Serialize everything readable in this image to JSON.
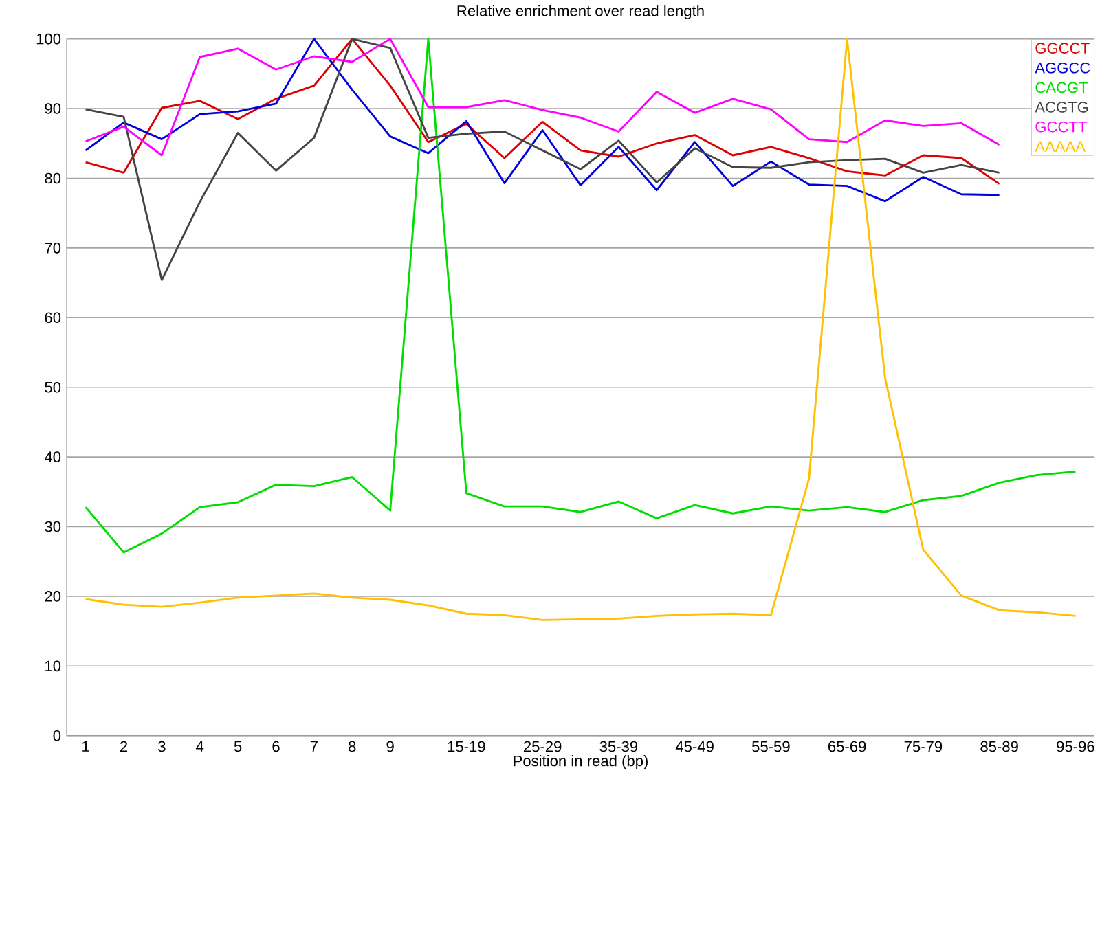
{
  "chart_data": {
    "type": "line",
    "title": "Relative enrichment over read length",
    "xlabel": "Position in read (bp)",
    "categories": [
      "1",
      "2",
      "3",
      "4",
      "5",
      "6",
      "7",
      "8",
      "9",
      null,
      "15-19",
      null,
      "25-29",
      null,
      "35-39",
      null,
      "45-49",
      null,
      "55-59",
      null,
      "65-69",
      null,
      "75-79",
      null,
      "85-89",
      null,
      "95-96"
    ],
    "ylim": [
      0,
      100
    ],
    "yticks": [
      0,
      10,
      20,
      30,
      40,
      50,
      60,
      70,
      80,
      90,
      100
    ],
    "grid": "y",
    "legend": "top right",
    "series": [
      {
        "name": "GGCCT",
        "color": "#dd0000",
        "values": [
          82.3,
          80.8,
          90.1,
          91.1,
          88.5,
          91.4,
          93.3,
          100,
          93.3,
          85.2,
          87.8,
          82.9,
          88.1,
          84.0,
          83.1,
          85.0,
          86.2,
          83.3,
          84.5,
          82.9,
          81.0,
          80.4,
          83.3,
          82.9,
          79.2,
          null,
          null
        ]
      },
      {
        "name": "AGGCC",
        "color": "#0000dd",
        "values": [
          84.0,
          88.0,
          85.6,
          89.2,
          89.6,
          90.7,
          100,
          92.7,
          86.0,
          83.6,
          88.2,
          79.3,
          86.9,
          79.0,
          84.5,
          78.3,
          85.2,
          78.9,
          82.4,
          79.1,
          78.9,
          76.7,
          80.2,
          77.7,
          77.6,
          null,
          null
        ]
      },
      {
        "name": "CACGT",
        "color": "#00dd00",
        "values": [
          32.8,
          26.3,
          29.0,
          32.8,
          33.5,
          36.0,
          35.8,
          37.1,
          32.3,
          100,
          34.8,
          32.9,
          32.9,
          32.1,
          33.6,
          31.2,
          33.1,
          31.9,
          32.9,
          32.3,
          32.8,
          32.1,
          33.8,
          34.4,
          36.3,
          37.4,
          37.9
        ]
      },
      {
        "name": "ACGTG",
        "color": "#444444",
        "values": [
          89.9,
          88.8,
          65.4,
          76.6,
          86.5,
          81.1,
          85.8,
          100,
          98.7,
          85.8,
          86.4,
          86.7,
          84.0,
          81.3,
          85.4,
          79.4,
          84.3,
          81.6,
          81.5,
          82.3,
          82.6,
          82.8,
          80.8,
          81.9,
          80.8,
          null,
          null
        ]
      },
      {
        "name": "GCCTT",
        "color": "#ff00ff",
        "values": [
          85.3,
          87.4,
          83.3,
          97.4,
          98.6,
          95.6,
          97.5,
          96.7,
          100,
          90.2,
          90.2,
          91.2,
          89.8,
          88.7,
          86.7,
          92.4,
          89.4,
          91.4,
          89.9,
          85.6,
          85.2,
          88.3,
          87.5,
          87.9,
          84.8,
          null,
          null
        ]
      },
      {
        "name": "AAAAA",
        "color": "#ffc000",
        "values": [
          19.6,
          18.8,
          18.5,
          19.1,
          19.8,
          20.1,
          20.4,
          19.8,
          19.5,
          18.7,
          17.5,
          17.3,
          16.6,
          16.7,
          16.8,
          17.2,
          17.4,
          17.5,
          17.3,
          36.9,
          100,
          51.3,
          26.7,
          20.1,
          18.0,
          17.7,
          17.2
        ]
      }
    ]
  }
}
